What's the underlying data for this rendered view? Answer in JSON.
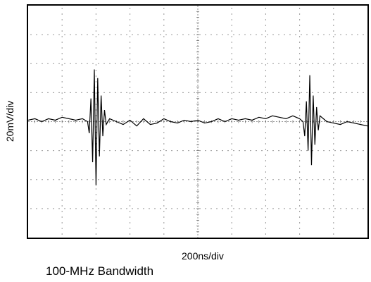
{
  "chart_data": {
    "type": "line",
    "title": "",
    "xlabel": "200ns/div",
    "ylabel": "20mV/div",
    "grid": true,
    "grid_divisions": {
      "x": 10,
      "y": 8
    },
    "xlim_div": [
      0,
      10
    ],
    "ylim_div": [
      -4,
      4
    ],
    "trace_color": "#000000",
    "series": [
      {
        "name": "",
        "x_div": [
          0,
          0.2,
          0.4,
          0.6,
          0.8,
          1.0,
          1.2,
          1.4,
          1.6,
          1.75,
          1.8,
          1.85,
          1.9,
          1.95,
          2.0,
          2.05,
          2.1,
          2.15,
          2.2,
          2.25,
          2.3,
          2.4,
          2.6,
          2.8,
          3.0,
          3.2,
          3.4,
          3.6,
          3.8,
          4.0,
          4.2,
          4.4,
          4.6,
          4.8,
          5.0,
          5.2,
          5.4,
          5.6,
          5.8,
          6.0,
          6.2,
          6.4,
          6.6,
          6.8,
          7.0,
          7.2,
          7.4,
          7.6,
          7.8,
          8.0,
          8.1,
          8.15,
          8.2,
          8.25,
          8.3,
          8.35,
          8.4,
          8.45,
          8.5,
          8.55,
          8.6,
          8.7,
          8.8,
          9.0,
          9.2,
          9.4,
          9.6,
          9.8,
          10.0
        ],
        "y_div": [
          0.05,
          0.1,
          0.0,
          0.1,
          0.05,
          0.15,
          0.1,
          0.05,
          0.1,
          0.0,
          -0.4,
          0.8,
          -1.4,
          1.8,
          -2.2,
          1.5,
          -1.2,
          0.9,
          -0.5,
          0.4,
          -0.1,
          0.1,
          0.0,
          -0.1,
          0.05,
          -0.15,
          0.1,
          -0.1,
          -0.05,
          0.1,
          0.0,
          -0.05,
          0.05,
          0.0,
          0.05,
          -0.05,
          0.0,
          0.1,
          0.0,
          0.1,
          0.05,
          0.1,
          0.05,
          0.15,
          0.1,
          0.2,
          0.15,
          0.1,
          0.2,
          0.1,
          0.0,
          -0.5,
          0.7,
          -1.0,
          1.6,
          -1.5,
          0.9,
          -0.8,
          0.5,
          -0.3,
          0.2,
          0.1,
          0.0,
          -0.05,
          -0.1,
          0.0,
          -0.05,
          -0.1,
          -0.15
        ]
      }
    ]
  },
  "caption": "100-MHz Bandwidth"
}
